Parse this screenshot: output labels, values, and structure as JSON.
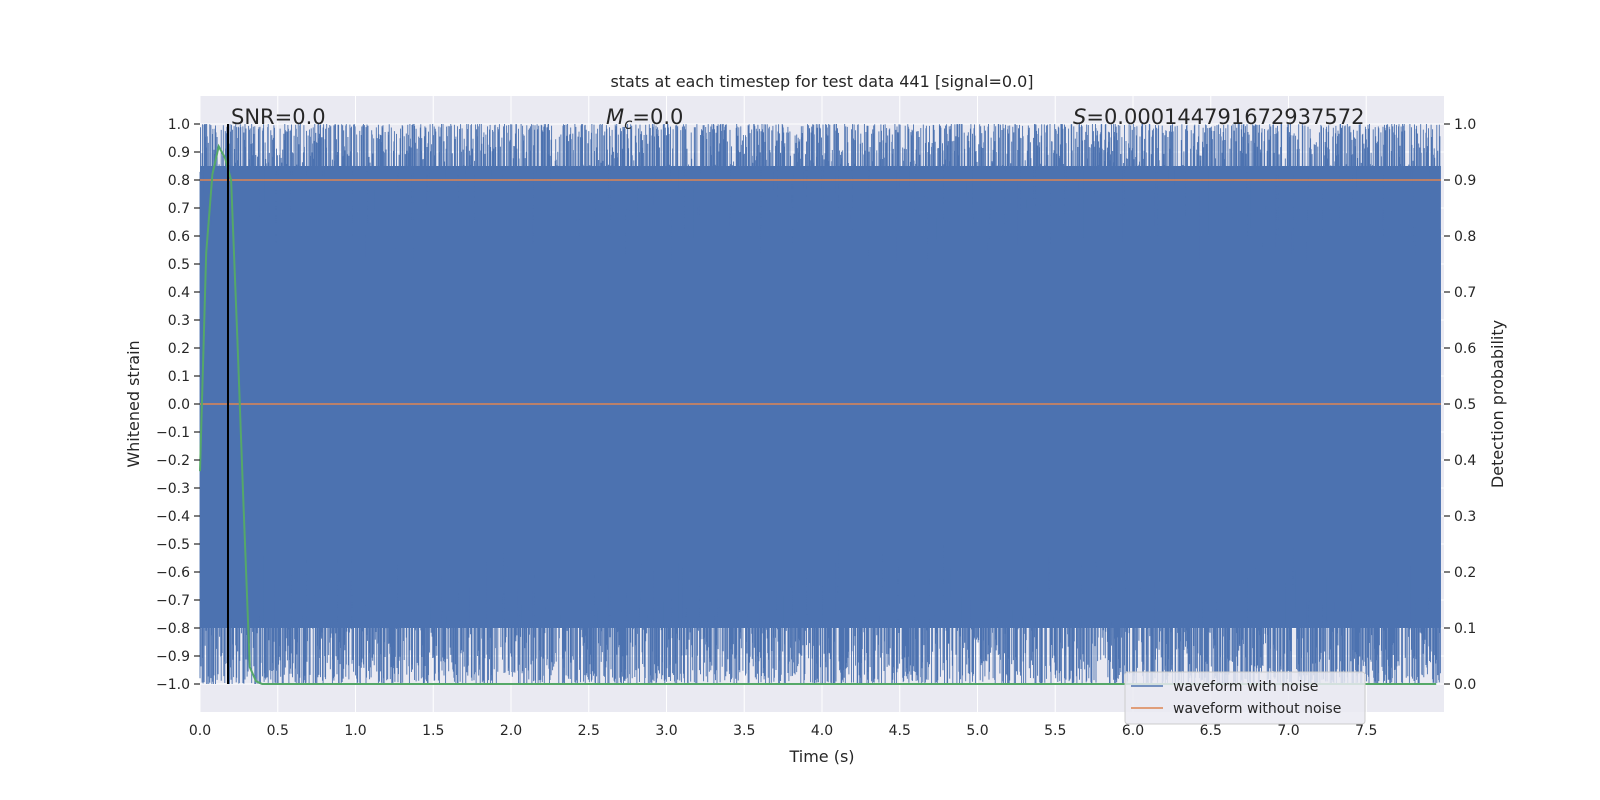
{
  "chart_data": {
    "type": "line",
    "title": "stats at each timestep for test data 441 [signal=0.0]",
    "xlabel": "Time (s)",
    "ylabel": "Whitened strain",
    "y2label": "Detection probability",
    "xlim": [
      0.0,
      8.0
    ],
    "ylim": [
      -1.1,
      1.1
    ],
    "y2lim": [
      -0.05,
      1.05
    ],
    "xticks": [
      0.0,
      0.5,
      1.0,
      1.5,
      2.0,
      2.5,
      3.0,
      3.5,
      4.0,
      4.5,
      5.0,
      5.5,
      6.0,
      6.5,
      7.0,
      7.5
    ],
    "xtick_labels": [
      "0.0",
      "0.5",
      "1.0",
      "1.5",
      "2.0",
      "2.5",
      "3.0",
      "3.5",
      "4.0",
      "4.5",
      "5.0",
      "5.5",
      "6.0",
      "6.5",
      "7.0",
      "7.5"
    ],
    "yticks": [
      1.0,
      0.9,
      0.8,
      0.7,
      0.6,
      0.5,
      0.4,
      0.3,
      0.2,
      0.1,
      0.0,
      -0.1,
      -0.2,
      -0.3,
      -0.4,
      -0.5,
      -0.6,
      -0.7,
      -0.8,
      -0.9,
      -1.0
    ],
    "ytick_labels": [
      "1.0",
      "0.9",
      "0.8",
      "0.7",
      "0.6",
      "0.5",
      "0.4",
      "0.3",
      "0.2",
      "0.1",
      "0.0",
      "−0.1",
      "−0.2",
      "−0.3",
      "−0.4",
      "−0.5",
      "−0.6",
      "−0.7",
      "−0.8",
      "−0.9",
      "−1.0"
    ],
    "y2ticks": [
      1.0,
      0.9,
      0.8,
      0.7,
      0.6,
      0.5,
      0.4,
      0.3,
      0.2,
      0.1,
      0.0
    ],
    "y2tick_labels": [
      "1.0",
      "0.9",
      "0.8",
      "0.7",
      "0.6",
      "0.5",
      "0.4",
      "0.3",
      "0.2",
      "0.1",
      "0.0"
    ],
    "grid": true,
    "legend_position": "bottom-right",
    "series": [
      {
        "name": "waveform with noise",
        "color": "#4c72b0",
        "description_values": {
          "upper_envelope": 1.0,
          "lower_envelope": -1.0,
          "x_range": [
            0.0,
            7.98
          ]
        }
      },
      {
        "name": "waveform without noise",
        "color": "#dd8452",
        "x": [
          0.0,
          7.98
        ],
        "y": [
          0.0,
          0.0
        ]
      },
      {
        "name": "",
        "color": "#55a868",
        "axis": "right",
        "x": [
          0.0,
          0.04,
          0.08,
          0.12,
          0.16,
          0.2,
          0.24,
          0.28,
          0.32,
          0.36,
          0.4,
          0.6,
          1.0,
          2.0,
          4.0,
          6.0,
          7.95
        ],
        "y": [
          0.38,
          0.77,
          0.91,
          0.96,
          0.94,
          0.9,
          0.62,
          0.32,
          0.03,
          0.005,
          0.0,
          0.0,
          0.0,
          0.0,
          0.0,
          0.0,
          0.0
        ]
      },
      {
        "name": "",
        "color": "#dd8452",
        "axis": "right",
        "x": [
          0.0,
          7.98
        ],
        "y": [
          0.9,
          0.9
        ]
      }
    ],
    "vline": {
      "x": 0.18,
      "color": "#000000"
    },
    "annotations": [
      {
        "text": "SNR=0.0"
      },
      {
        "text_prefix": "M",
        "text_sub": "c",
        "text_suffix": "=0.0"
      },
      {
        "text_prefix": "S",
        "text_suffix": "=0.000144791672937572"
      }
    ]
  }
}
